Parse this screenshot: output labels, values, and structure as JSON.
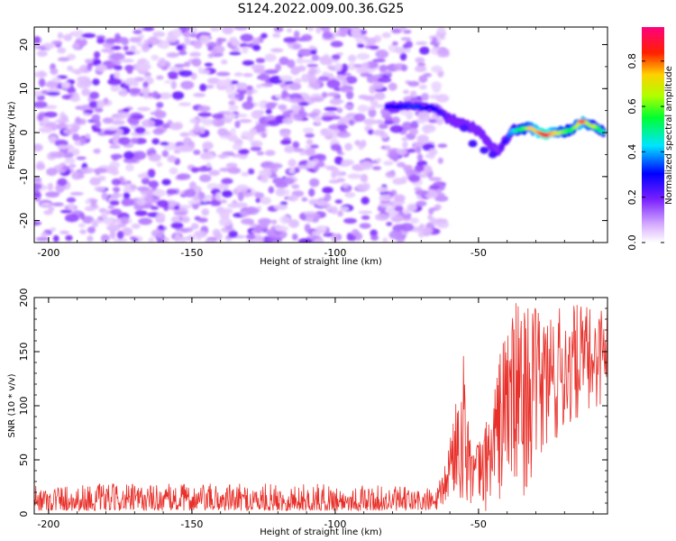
{
  "title": "S124.2022.009.00.36.G25",
  "chart_data": [
    {
      "type": "heatmap",
      "xlabel": "Height of straight line (km)",
      "ylabel": "Frequency (Hz)",
      "xlim": [
        -205,
        -5
      ],
      "ylim": [
        -25,
        24
      ],
      "xticks": [
        -200,
        -150,
        -100,
        -50
      ],
      "xtick_labels": [
        "-200",
        "-150",
        "-100",
        "-50"
      ],
      "yticks": [
        -20,
        -10,
        0,
        10,
        20
      ],
      "ytick_labels": [
        "-20",
        "-10",
        "0",
        "10",
        "20"
      ],
      "noise_region_x": [
        -205,
        -62
      ],
      "noise_level": 0.2,
      "ridge": {
        "x": [
          -82,
          -72,
          -65,
          -60,
          -55,
          -50,
          -46,
          -43,
          -38,
          -32,
          -27,
          -22,
          -18,
          -14,
          -10,
          -6
        ],
        "y": [
          6,
          6,
          5.5,
          3,
          2,
          0.5,
          -3,
          -4,
          0.5,
          1,
          -0.5,
          0,
          0.5,
          2.5,
          1.5,
          0
        ],
        "amplitude": [
          0.3,
          0.35,
          0.3,
          0.2,
          0.2,
          0.2,
          0.2,
          0.18,
          0.45,
          0.7,
          0.9,
          0.7,
          0.55,
          0.8,
          0.6,
          0.5
        ]
      },
      "colorbar": {
        "label": "Normalized spectral amplitude",
        "range": [
          0,
          0.95
        ],
        "ticks": [
          0.0,
          0.2,
          0.4,
          0.6,
          0.8
        ],
        "tick_labels": [
          "0.0",
          "0.2",
          "0.4",
          "0.6",
          "0.8"
        ]
      }
    },
    {
      "type": "line",
      "xlabel": "Height of straight line (km)",
      "ylabel": "SNR (10 * v/v)",
      "xlim": [
        -205,
        -5
      ],
      "ylim": [
        0,
        200
      ],
      "xticks": [
        -200,
        -150,
        -100,
        -50
      ],
      "xtick_labels": [
        "-200",
        "-150",
        "-100",
        "-50"
      ],
      "yticks": [
        0,
        50,
        100,
        150,
        200
      ],
      "ytick_labels": [
        "0",
        "50",
        "100",
        "150",
        "200"
      ],
      "line_color": "#e8302a",
      "envelope": [
        {
          "x": -205,
          "base": 3,
          "peak": 28
        },
        {
          "x": -100,
          "base": 3,
          "peak": 28
        },
        {
          "x": -65,
          "base": 3,
          "peak": 24
        },
        {
          "x": -62,
          "base": 8,
          "peak": 40
        },
        {
          "x": -58,
          "base": 12,
          "peak": 110
        },
        {
          "x": -55,
          "base": 10,
          "peak": 150
        },
        {
          "x": -52,
          "base": 4,
          "peak": 60
        },
        {
          "x": -48,
          "base": 2,
          "peak": 80
        },
        {
          "x": -44,
          "base": 5,
          "peak": 130
        },
        {
          "x": -40,
          "base": 15,
          "peak": 190
        },
        {
          "x": -35,
          "base": 12,
          "peak": 200
        },
        {
          "x": -30,
          "base": 40,
          "peak": 190
        },
        {
          "x": -25,
          "base": 50,
          "peak": 195
        },
        {
          "x": -20,
          "base": 70,
          "peak": 190
        },
        {
          "x": -15,
          "base": 85,
          "peak": 195
        },
        {
          "x": -10,
          "base": 90,
          "peak": 190
        },
        {
          "x": -5,
          "base": 110,
          "peak": 200
        }
      ]
    }
  ]
}
